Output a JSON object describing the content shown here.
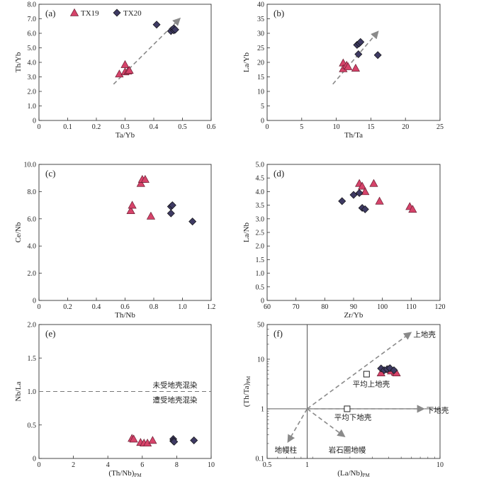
{
  "colors": {
    "tx19": "#d6436a",
    "tx20": "#3e3a63",
    "arrow": "#8a8a8a",
    "axis": "#333333"
  },
  "legend": {
    "tx19": "TX19",
    "tx20": "TX20"
  },
  "chart_data": [
    {
      "id": "a",
      "panel_label": "(a)",
      "type": "scatter",
      "xlabel": "Ta/Yb",
      "ylabel": "Th/Yb",
      "xlim": [
        0,
        0.6
      ],
      "ylim": [
        0,
        8
      ],
      "xticks": [
        0,
        0.1,
        0.2,
        0.3,
        0.4,
        0.5,
        0.6
      ],
      "xtick_labels": [
        "0",
        "0.1",
        "0.2",
        "0.3",
        "0.4",
        "0.5",
        "0.6"
      ],
      "yticks": [
        0,
        1,
        2,
        3,
        4,
        5,
        6,
        7,
        8
      ],
      "ytick_labels": [
        "0",
        "1.0",
        "2.0",
        "3.0",
        "4.0",
        "5.0",
        "6.0",
        "7.0",
        "8.0"
      ],
      "series": [
        {
          "name": "TX19",
          "marker": "triangle",
          "points": [
            [
              0.28,
              3.2
            ],
            [
              0.3,
              3.85
            ],
            [
              0.3,
              3.35
            ],
            [
              0.31,
              3.4
            ],
            [
              0.315,
              3.45
            ]
          ]
        },
        {
          "name": "TX20",
          "marker": "diamond",
          "points": [
            [
              0.41,
              6.6
            ],
            [
              0.46,
              6.15
            ],
            [
              0.47,
              6.2
            ],
            [
              0.47,
              6.35
            ],
            [
              0.475,
              6.25
            ]
          ]
        }
      ],
      "arrows": [
        {
          "from": [
            0.26,
            2.5
          ],
          "to": [
            0.49,
            7.0
          ]
        }
      ],
      "annotations": [],
      "legend": true
    },
    {
      "id": "b",
      "panel_label": "(b)",
      "type": "scatter",
      "xlabel": "Th/Ta",
      "ylabel": "La/Yb",
      "xlim": [
        0,
        25
      ],
      "ylim": [
        0,
        40
      ],
      "xticks": [
        0,
        5,
        10,
        15,
        20,
        25
      ],
      "xtick_labels": [
        "0",
        "5",
        "10",
        "15",
        "20",
        "25"
      ],
      "yticks": [
        0,
        5,
        10,
        15,
        20,
        25,
        30,
        35,
        40
      ],
      "ytick_labels": [
        "0",
        "5",
        "10",
        "15",
        "20",
        "25",
        "30",
        "35",
        "40"
      ],
      "series": [
        {
          "name": "TX19",
          "marker": "triangle",
          "points": [
            [
              11.0,
              19.8
            ],
            [
              11.0,
              17.8
            ],
            [
              11.5,
              19.0
            ],
            [
              11.7,
              18.5
            ],
            [
              12.8,
              18.0
            ]
          ]
        },
        {
          "name": "TX20",
          "marker": "diamond",
          "points": [
            [
              13.0,
              26.0
            ],
            [
              13.2,
              22.8
            ],
            [
              13.3,
              26.5
            ],
            [
              13.5,
              27.0
            ],
            [
              16.0,
              22.5
            ]
          ]
        }
      ],
      "arrows": [
        {
          "from": [
            9.5,
            12.5
          ],
          "to": [
            16.0,
            30.5
          ]
        }
      ],
      "annotations": [],
      "legend": false
    },
    {
      "id": "c",
      "panel_label": "(c)",
      "type": "scatter",
      "xlabel": "Th/Nb",
      "ylabel": "Ce/Nb",
      "xlim": [
        0,
        1.2
      ],
      "ylim": [
        0,
        10
      ],
      "xticks": [
        0,
        0.2,
        0.4,
        0.6,
        0.8,
        1.0,
        1.2
      ],
      "xtick_labels": [
        "0",
        "0.2",
        "0.4",
        "0.6",
        "0.8",
        "1.0",
        "1.2"
      ],
      "yticks": [
        0,
        2,
        4,
        6,
        8,
        10
      ],
      "ytick_labels": [
        "0",
        "2.0",
        "4.0",
        "6.0",
        "8.0",
        "10.0"
      ],
      "series": [
        {
          "name": "TX19",
          "marker": "triangle",
          "points": [
            [
              0.64,
              6.6
            ],
            [
              0.65,
              7.0
            ],
            [
              0.71,
              8.6
            ],
            [
              0.72,
              8.9
            ],
            [
              0.74,
              8.9
            ],
            [
              0.78,
              6.2
            ]
          ]
        },
        {
          "name": "TX20",
          "marker": "diamond",
          "points": [
            [
              0.92,
              6.9
            ],
            [
              0.92,
              6.4
            ],
            [
              0.93,
              7.0
            ],
            [
              1.07,
              5.8
            ]
          ]
        }
      ],
      "arrows": [],
      "annotations": [],
      "legend": false
    },
    {
      "id": "d",
      "panel_label": "(d)",
      "type": "scatter",
      "xlabel": "Zr/Yb",
      "ylabel": "La/Nb",
      "xlim": [
        60,
        120
      ],
      "ylim": [
        0,
        5
      ],
      "xticks": [
        60,
        70,
        80,
        90,
        100,
        110,
        120
      ],
      "xtick_labels": [
        "60",
        "70",
        "80",
        "90",
        "100",
        "110",
        "120"
      ],
      "yticks": [
        0,
        0.5,
        1,
        1.5,
        2,
        2.5,
        3,
        3.5,
        4,
        4.5,
        5
      ],
      "ytick_labels": [
        "0",
        "0.5",
        "1.0",
        "1.5",
        "2.0",
        "2.5",
        "3.0",
        "3.5",
        "4.0",
        "4.5",
        "5.0"
      ],
      "series": [
        {
          "name": "TX19",
          "marker": "triangle",
          "points": [
            [
              92,
              4.3
            ],
            [
              93,
              4.2
            ],
            [
              94,
              4.0
            ],
            [
              97,
              4.3
            ],
            [
              99,
              3.65
            ],
            [
              109.5,
              3.45
            ],
            [
              110.5,
              3.35
            ]
          ]
        },
        {
          "name": "TX20",
          "marker": "diamond",
          "points": [
            [
              86,
              3.65
            ],
            [
              90,
              3.88
            ],
            [
              92,
              3.95
            ],
            [
              93,
              3.4
            ],
            [
              94,
              3.35
            ]
          ]
        }
      ],
      "arrows": [],
      "annotations": [],
      "legend": false
    },
    {
      "id": "e",
      "panel_label": "(e)",
      "type": "scatter",
      "xlabel": "(Th/Nb)",
      "xlabel_sub": "PM",
      "ylabel": "Nb/La",
      "xlim": [
        0,
        10
      ],
      "ylim": [
        0,
        2
      ],
      "xticks": [
        0,
        2,
        4,
        6,
        8,
        10
      ],
      "xtick_labels": [
        "0",
        "2",
        "4",
        "6",
        "8",
        "10"
      ],
      "yticks": [
        0,
        0.5,
        1,
        1.5,
        2
      ],
      "ytick_labels": [
        "0",
        "0.5",
        "1.0",
        "1.5",
        "2.0"
      ],
      "series": [
        {
          "name": "TX19",
          "marker": "triangle",
          "points": [
            [
              5.4,
              0.3
            ],
            [
              5.5,
              0.29
            ],
            [
              5.9,
              0.24
            ],
            [
              6.1,
              0.23
            ],
            [
              6.3,
              0.23
            ],
            [
              6.6,
              0.27
            ]
          ]
        },
        {
          "name": "TX20",
          "marker": "diamond",
          "points": [
            [
              7.8,
              0.29
            ],
            [
              7.8,
              0.26
            ],
            [
              7.85,
              0.25
            ],
            [
              9.0,
              0.27
            ]
          ]
        }
      ],
      "hline": {
        "y": 1.0
      },
      "arrows": [],
      "annotations": [
        {
          "text": "未受地壳混染",
          "x": 7.9,
          "y": 1.1
        },
        {
          "text": "遭受地壳混染",
          "x": 7.9,
          "y": 0.88
        }
      ],
      "legend": false
    },
    {
      "id": "f",
      "panel_label": "(f)",
      "type": "scatter",
      "scale": "loglog",
      "xlabel": "(La/Nb)",
      "xlabel_sub": "PM",
      "ylabel": "(Th/Ta)",
      "ylabel_sub": "PM",
      "xlim": [
        0.5,
        10
      ],
      "ylim": [
        0.1,
        50
      ],
      "xticks": [
        0.5,
        1,
        10
      ],
      "xtick_labels": [
        "0.5",
        "1",
        "10"
      ],
      "yticks": [
        0.1,
        1,
        10,
        50
      ],
      "ytick_labels": [
        "0.1",
        "1",
        "10",
        "50"
      ],
      "series": [
        {
          "name": "TX19",
          "marker": "triangle",
          "points": [
            [
              3.6,
              5.3
            ],
            [
              4.1,
              6.2
            ],
            [
              4.3,
              5.8
            ],
            [
              4.6,
              5.5
            ],
            [
              4.7,
              5.3
            ]
          ]
        },
        {
          "name": "TX20",
          "marker": "diamond",
          "points": [
            [
              3.6,
              6.5
            ],
            [
              3.8,
              6.0
            ],
            [
              4.0,
              6.3
            ],
            [
              4.2,
              6.6
            ],
            [
              4.5,
              6.0
            ]
          ]
        }
      ],
      "reference_points": [
        {
          "name": "平均上地壳",
          "x": 2.8,
          "y": 5.0
        },
        {
          "name": "平均下地壳",
          "x": 2.0,
          "y": 1.0
        }
      ],
      "crosshair": {
        "x": 1,
        "y": 1
      },
      "arrows": [
        {
          "from": [
            1,
            1
          ],
          "to": [
            6.0,
            34
          ],
          "label": "上地壳"
        },
        {
          "from": [
            1,
            1
          ],
          "to": [
            7.5,
            1
          ],
          "label": "下地壳"
        },
        {
          "from": [
            1,
            1
          ],
          "to": [
            1.9,
            0.28
          ],
          "label": "岩石圈地幔"
        },
        {
          "from": [
            1,
            1
          ],
          "to": [
            0.72,
            0.22
          ],
          "label": "地幔柱"
        }
      ],
      "annotations": [
        {
          "text": "上地壳",
          "x": 6.3,
          "y": 32
        },
        {
          "text": "平均上地壳",
          "x": 2.2,
          "y": 3.2
        },
        {
          "text": "下地壳",
          "x": 7.9,
          "y": 0.95
        },
        {
          "text": "平均下地壳",
          "x": 1.6,
          "y": 0.68
        },
        {
          "text": "岩石圈地幔",
          "x": 1.45,
          "y": 0.15
        },
        {
          "text": "地幔柱",
          "x": 0.57,
          "y": 0.15
        }
      ],
      "legend": false
    }
  ]
}
